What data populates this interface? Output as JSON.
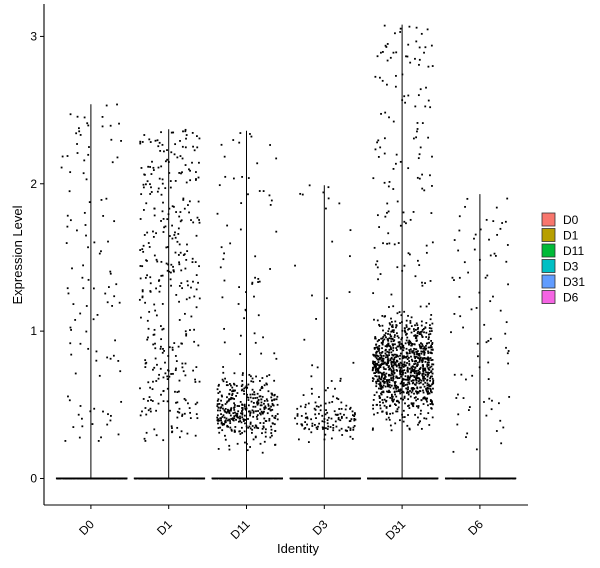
{
  "chart_data": {
    "type": "violin-jitter",
    "xlabel": "Identity",
    "ylabel": "Expression Level",
    "categories": [
      "D0",
      "D1",
      "D11",
      "D3",
      "D31",
      "D6"
    ],
    "ylim": [
      -0.18,
      3.22
    ],
    "yticks": [
      0,
      1,
      2,
      3
    ],
    "legend_position": "right",
    "grid": false,
    "series": [
      {
        "name": "D0",
        "color": "#F8766D",
        "max": 2.54,
        "zero_count": 400,
        "nonzero": {
          "count": 110,
          "dist": "uniform",
          "lo": 0.25,
          "hi": 2.54
        }
      },
      {
        "name": "D1",
        "color": "#B79F00",
        "max": 2.37,
        "zero_count": 400,
        "nonzero": {
          "count": 360,
          "dist": "uniform",
          "lo": 0.25,
          "hi": 2.37
        }
      },
      {
        "name": "D11",
        "color": "#00BA38",
        "max": 2.36,
        "zero_count": 400,
        "nonzero": {
          "count": 430,
          "dist": "skewed",
          "lo": 0.16,
          "hi": 2.36,
          "mode": 0.35
        }
      },
      {
        "name": "D3",
        "color": "#00BFC4",
        "max": 1.99,
        "zero_count": 400,
        "nonzero": {
          "count": 150,
          "dist": "skewed",
          "lo": 0.16,
          "hi": 1.99,
          "mode": 0.3
        }
      },
      {
        "name": "D31",
        "color": "#619CFF",
        "max": 3.08,
        "zero_count": 400,
        "nonzero": {
          "count": 1150,
          "dist": "skewed",
          "lo": 0.28,
          "hi": 3.08,
          "mode": 0.55
        }
      },
      {
        "name": "D6",
        "color": "#F564E3",
        "max": 1.93,
        "zero_count": 400,
        "nonzero": {
          "count": 85,
          "dist": "uniform",
          "lo": 0.18,
          "hi": 1.93
        }
      }
    ]
  }
}
